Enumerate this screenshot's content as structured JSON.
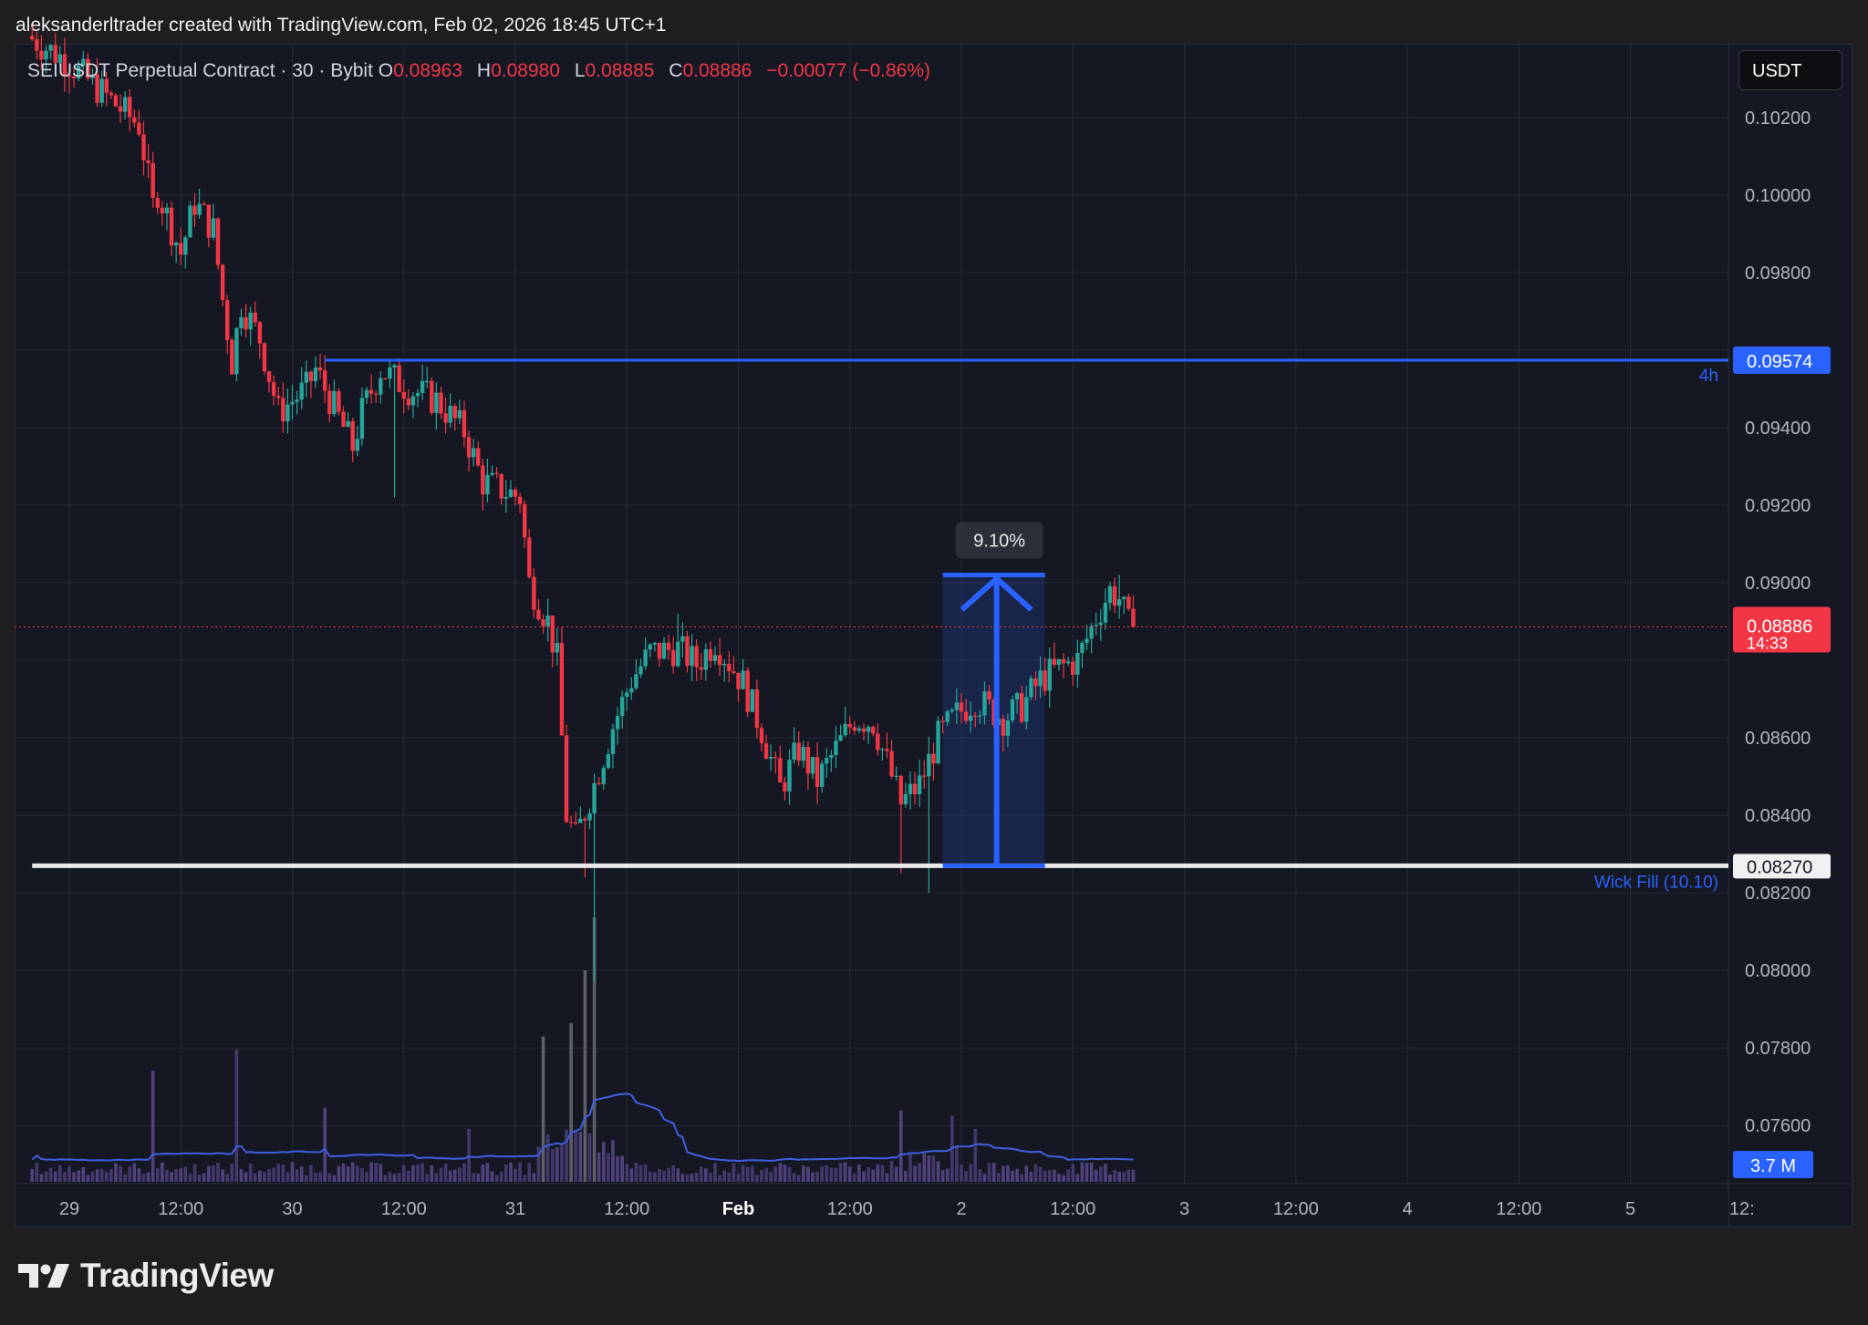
{
  "byline": "aleksanderltrader created with TradingView.com, Feb 02, 2026 18:45 UTC+1",
  "legend": {
    "symbol": "SEIUSDT Perpetual Contract · 30 · Bybit",
    "open_label": "O",
    "open": "0.08963",
    "high_label": "H",
    "high": "0.08980",
    "low_label": "L",
    "low": "0.08885",
    "close_label": "C",
    "close": "0.08886",
    "change": "−0.00077 (−0.86%)"
  },
  "currency_button": "USDT",
  "brand": "TradingView",
  "colors": {
    "up": "#26a69a",
    "down": "#f23645",
    "line": "#2962ff",
    "support": "#e8e8e8",
    "volume_ma": "#3f5ee0"
  },
  "chart_data": {
    "type": "candlestick",
    "symbol": "SEIUSDT",
    "interval": "30",
    "ylim": [
      0.0745,
      0.1039
    ],
    "y_ticks": [
      "0.10200",
      "0.10000",
      "0.09800",
      "0.09400",
      "0.09200",
      "0.09000",
      "0.08600",
      "0.08400",
      "0.08200",
      "0.08000",
      "0.07800",
      "0.07600"
    ],
    "y_tick_values": [
      0.102,
      0.1,
      0.098,
      0.094,
      0.092,
      0.09,
      0.086,
      0.084,
      0.082,
      0.08,
      0.078,
      0.076
    ],
    "x_ticks": [
      "29",
      "12:00",
      "30",
      "12:00",
      "31",
      "12:00",
      "Feb",
      "12:00",
      "2",
      "12:00",
      "3",
      "12:00",
      "4",
      "12:00",
      "5",
      "12:"
    ],
    "x_tick_hours": [
      0,
      12,
      24,
      36,
      48,
      60,
      72,
      84,
      96,
      108,
      120,
      132,
      144,
      156,
      168,
      180
    ],
    "data_end_hour": 114.7,
    "price_path": [
      [
        -4,
        0.1041
      ],
      [
        0,
        0.1035
      ],
      [
        8,
        0.1018
      ],
      [
        9.5,
        0.0997
      ],
      [
        10,
        0.1001
      ],
      [
        12.5,
        0.0985
      ],
      [
        14,
        0.0998
      ],
      [
        16,
        0.0991
      ],
      [
        17,
        0.0973
      ],
      [
        18,
        0.0957
      ],
      [
        19,
        0.0972
      ],
      [
        21,
        0.0963
      ],
      [
        23,
        0.0944
      ],
      [
        26,
        0.095
      ],
      [
        27,
        0.0955
      ],
      [
        29,
        0.0945
      ],
      [
        31,
        0.0935
      ],
      [
        32,
        0.0944
      ],
      [
        34,
        0.0955
      ],
      [
        37,
        0.095
      ],
      [
        40,
        0.0947
      ],
      [
        43,
        0.0939
      ],
      [
        45,
        0.0926
      ],
      [
        47,
        0.0924
      ],
      [
        49,
        0.0922
      ],
      [
        50,
        0.09
      ],
      [
        52,
        0.089
      ],
      [
        53,
        0.088
      ],
      [
        54,
        0.084
      ],
      [
        55,
        0.0834
      ],
      [
        57,
        0.0848
      ],
      [
        59,
        0.0863
      ],
      [
        61,
        0.0875
      ],
      [
        63,
        0.0882
      ],
      [
        66,
        0.0883
      ],
      [
        68,
        0.0879
      ],
      [
        70,
        0.0885
      ],
      [
        73,
        0.0874
      ],
      [
        75,
        0.0862
      ],
      [
        77,
        0.0847
      ],
      [
        79,
        0.0857
      ],
      [
        81,
        0.0849
      ],
      [
        83,
        0.0857
      ],
      [
        85,
        0.0865
      ],
      [
        87,
        0.0864
      ],
      [
        89,
        0.085
      ],
      [
        90,
        0.0843
      ],
      [
        92,
        0.0848
      ],
      [
        94,
        0.086
      ],
      [
        96,
        0.0866
      ],
      [
        98,
        0.087
      ],
      [
        101,
        0.0865
      ],
      [
        103,
        0.0868
      ],
      [
        105,
        0.0875
      ],
      [
        107,
        0.0878
      ],
      [
        109,
        0.088
      ],
      [
        111,
        0.0891
      ],
      [
        112.5,
        0.0898
      ],
      [
        113.5,
        0.0896
      ],
      [
        114.5,
        0.0889
      ]
    ],
    "wicks": [
      {
        "hour": 56.5,
        "low": 0.0797
      },
      {
        "hour": 55.5,
        "low": 0.0824
      },
      {
        "hour": 89.5,
        "low": 0.0825
      },
      {
        "hour": 92.5,
        "low": 0.082
      },
      {
        "hour": 35,
        "low": 0.0922
      },
      {
        "hour": 65.5,
        "high": 0.0892
      },
      {
        "hour": 113,
        "high": 0.0902
      }
    ],
    "volume_spikes": [
      {
        "hour": 56.5,
        "value": 1.0
      },
      {
        "hour": 55.5,
        "value": 0.8
      },
      {
        "hour": 54,
        "value": 0.6
      },
      {
        "hour": 51,
        "value": 0.55
      },
      {
        "hour": 18,
        "value": 0.5
      },
      {
        "hour": 9,
        "value": 0.42
      },
      {
        "hour": 27.5,
        "value": 0.28
      },
      {
        "hour": 43,
        "value": 0.2
      },
      {
        "hour": 89.5,
        "value": 0.27
      },
      {
        "hour": 95,
        "value": 0.25
      },
      {
        "hour": 97.5,
        "value": 0.2
      }
    ],
    "horizontal_levels": [
      {
        "price": 0.09574,
        "label": "0.09574",
        "tag": "4h",
        "from_hour": 27.5,
        "color": "#2962ff"
      },
      {
        "price": 0.0827,
        "label": "0.08270",
        "tag": "Wick Fill (10.10)",
        "from_hour": -4,
        "color": "#e8e8e8"
      }
    ],
    "last_price": {
      "value": 0.08886,
      "label": "0.08886",
      "countdown": "14:33"
    },
    "measure_box": {
      "from_hour": 94,
      "to_hour": 105,
      "low": 0.0827,
      "high": 0.0902,
      "label": "9.10%"
    },
    "volume": {
      "ma_label": "3.7 M"
    }
  }
}
